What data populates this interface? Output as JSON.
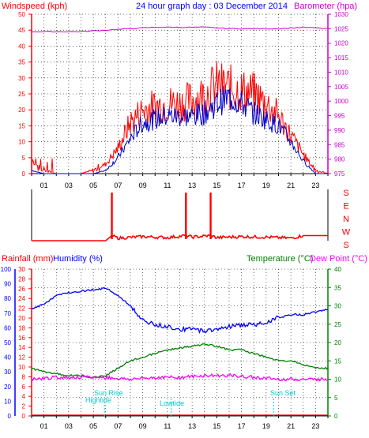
{
  "colors": {
    "wind_red": "#ff0000",
    "wind_blue": "#0000cc",
    "baro": "#cc00cc",
    "hum": "#0000ff",
    "temp": "#008000",
    "dew": "#ff00ff",
    "rain": "#ff0000",
    "cyan": "#00cccc",
    "title": "#0000ff",
    "grid": "#000000"
  },
  "top": {
    "left_label": "Windspeed (kph)",
    "title": "24 hour graph day : 03 December 2014",
    "right_label": "Barometer (hpa)"
  },
  "wind_dir_labels": [
    "S",
    "E",
    "N",
    "W",
    "S"
  ],
  "bottom": {
    "rain_label": "Rainfall (mm)",
    "hum_label": "Humidity (%)",
    "temp_label": "Temperature (°C)",
    "dew_label": "Dew Point (°C)",
    "annotations": {
      "sunrise": "Sun Rise",
      "hightide": "Hightide",
      "lowtide": "Lowtide",
      "sunset": "Sun Set",
      "sunset_hour": "Sun Set"
    }
  },
  "chart_data": [
    {
      "type": "line",
      "title": "24 hour graph day : 03 December 2014",
      "x_ticks": [
        "01",
        "03",
        "05",
        "07",
        "09",
        "11",
        "13",
        "15",
        "17",
        "19",
        "21",
        "23"
      ],
      "ylabel": "Windspeed (kph)",
      "ylim": [
        0,
        50
      ],
      "y_ticks": [
        0,
        5,
        10,
        15,
        20,
        25,
        30,
        35,
        40,
        45,
        50
      ],
      "y2label": "Barometer (hpa)",
      "y2lim": [
        975,
        1030
      ],
      "y2_ticks": [
        975,
        980,
        985,
        990,
        995,
        1000,
        1005,
        1010,
        1015,
        1020,
        1025,
        1030
      ],
      "grid": true,
      "series": [
        {
          "x": [
            0,
            1,
            2,
            3,
            4,
            5,
            6,
            7,
            8,
            9,
            10,
            11,
            12,
            13,
            14,
            15,
            16,
            17,
            18,
            19,
            20,
            21,
            22,
            23,
            24
          ],
          "values": [
            3,
            1,
            0,
            0,
            0,
            1,
            3,
            8,
            16,
            20,
            21,
            22,
            22,
            23,
            25,
            28,
            27,
            26,
            25,
            22,
            18,
            12,
            6,
            1,
            0
          ]
        },
        {
          "x": [
            0,
            1,
            2,
            3,
            4,
            5,
            6,
            7,
            8,
            9,
            10,
            11,
            12,
            13,
            14,
            15,
            16,
            17,
            18,
            19,
            20,
            21,
            22,
            23,
            24
          ],
          "values": [
            1,
            0,
            0,
            0,
            0,
            0,
            1,
            5,
            11,
            16,
            17,
            18,
            18,
            18,
            19,
            22,
            24,
            22,
            19,
            17,
            15,
            10,
            4,
            0,
            0
          ]
        },
        {
          "x": [
            0,
            2,
            4,
            6,
            8,
            10,
            12,
            14,
            16,
            18,
            20,
            22,
            24
          ],
          "values": [
            1024,
            1024,
            1024,
            1024.5,
            1025,
            1025.5,
            1025.5,
            1025.5,
            1025,
            1025,
            1025,
            1025.5,
            1025
          ]
        }
      ]
    },
    {
      "type": "line",
      "x_ticks": [],
      "categories": [
        "S",
        "E",
        "N",
        "W",
        "S"
      ],
      "series": [
        {
          "x": [
            0,
            6,
            6.5,
            7,
            9,
            11,
            12.5,
            13,
            14.5,
            15,
            17,
            19,
            21,
            22,
            24
          ],
          "values": [
            0,
            0,
            0.1,
            0.05,
            0.08,
            0.06,
            0.1,
            0.07,
            0.1,
            0.06,
            0.08,
            0.07,
            0.05,
            0.1,
            0.1
          ]
        }
      ],
      "spikes": [
        6.5,
        12.5,
        14.5
      ]
    },
    {
      "type": "line",
      "x_ticks": [
        "01",
        "03",
        "05",
        "07",
        "09",
        "11",
        "13",
        "15",
        "17",
        "19",
        "21",
        "23"
      ],
      "ylabel": "Rainfall (mm)",
      "ylim": [
        0,
        30
      ],
      "y_ticks": [
        0,
        2,
        4,
        6,
        8,
        10,
        12,
        14,
        16,
        18,
        20,
        22,
        24,
        26,
        28,
        30
      ],
      "hum_ylim": [
        0,
        100
      ],
      "hum_ticks": [
        0,
        10,
        20,
        30,
        40,
        50,
        60,
        70,
        80,
        90,
        100
      ],
      "y2label": "Temperature (°C)",
      "y2lim": [
        0,
        40
      ],
      "y2_ticks": [
        0,
        5,
        10,
        15,
        20,
        25,
        30,
        35,
        40
      ],
      "grid": true,
      "series": [
        {
          "x": [
            0,
            1,
            2,
            3,
            4,
            5,
            6,
            7,
            8,
            9,
            10,
            11,
            12,
            13,
            14,
            15,
            16,
            17,
            18,
            19,
            20,
            21,
            22,
            23,
            24
          ],
          "values": [
            73,
            76,
            82,
            84,
            85,
            86,
            87,
            82,
            75,
            65,
            62,
            61,
            59,
            59,
            58,
            59,
            61,
            62,
            62,
            64,
            67,
            69,
            69,
            71,
            73
          ]
        },
        {
          "x": [
            0,
            1,
            2,
            3,
            4,
            5,
            6,
            7,
            8,
            9,
            10,
            11,
            12,
            13,
            14,
            15,
            16,
            17,
            18,
            19,
            20,
            21,
            22,
            23,
            24
          ],
          "values": [
            13,
            12,
            11.5,
            11,
            11,
            10.5,
            11,
            13,
            15,
            16,
            17,
            18,
            18.5,
            19,
            19.5,
            19,
            18,
            18,
            17,
            16,
            15,
            15,
            14,
            13,
            13
          ]
        },
        {
          "x": [
            0,
            2,
            4,
            6,
            8,
            10,
            12,
            14,
            16,
            18,
            20,
            22,
            24
          ],
          "values": [
            10,
            10.5,
            10.5,
            10.5,
            10,
            10.5,
            10.5,
            11,
            11,
            10.5,
            10,
            10,
            10
          ]
        }
      ]
    }
  ]
}
